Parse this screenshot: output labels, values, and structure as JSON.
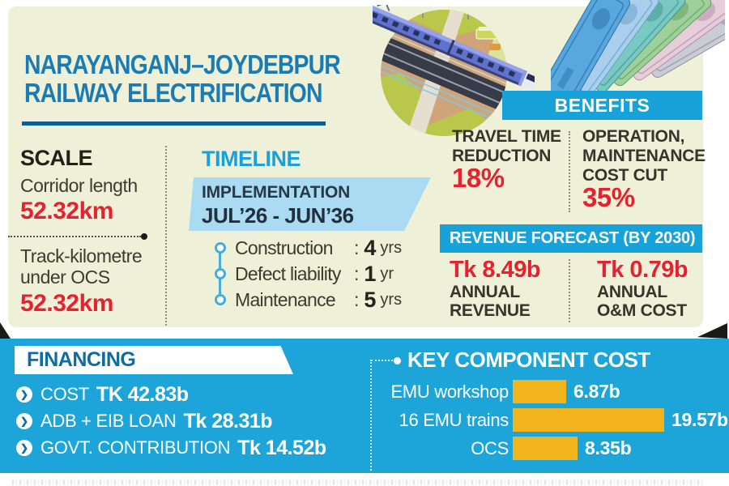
{
  "header": {
    "title_line1": "NARAYANGANJ–JOYDEBPUR",
    "title_line2": "RAILWAY ELECTRIFICATION"
  },
  "scale": {
    "heading": "SCALE",
    "corridor_label": "Corridor length",
    "corridor_value": "52.32km",
    "track_label_line1": "Track-kilometre",
    "track_label_line2": "under OCS",
    "track_value": "52.32km"
  },
  "timeline": {
    "heading": "TIMELINE",
    "implementation_label": "IMPLEMENTATION",
    "implementation_period": "JUL’26 - JUN’36",
    "phases": [
      {
        "label": "Construction",
        "colon": ":",
        "value": "4",
        "unit": "yrs"
      },
      {
        "label": "Defect liability",
        "colon": ":",
        "value": "1",
        "unit": "yr"
      },
      {
        "label": "Maintenance",
        "colon": ":",
        "value": "5",
        "unit": "yrs"
      }
    ]
  },
  "benefits": {
    "heading": "BENEFITS",
    "items": [
      {
        "lines": [
          "TRAVEL TIME",
          "REDUCTION"
        ],
        "value": "18%"
      },
      {
        "lines": [
          "OPERATION,",
          "MAINTENANCE",
          "COST CUT"
        ],
        "value": "35%"
      }
    ]
  },
  "revenue_forecast": {
    "heading": "REVENUE FORECAST (BY 2030)",
    "items": [
      {
        "value": "Tk 8.49b",
        "lines": [
          "ANNUAL",
          "REVENUE"
        ]
      },
      {
        "value": "Tk 0.79b",
        "lines": [
          "ANNUAL",
          "O&M COST"
        ]
      }
    ]
  },
  "financing": {
    "heading": "FINANCING",
    "bullet_glyph": "❯",
    "items": [
      {
        "label": "COST",
        "value": "TK 42.83b"
      },
      {
        "label": "ADB + EIB LOAN",
        "value": "Tk 28.31b"
      },
      {
        "label": "GOVT. CONTRIBUTION",
        "value": "Tk 14.52b"
      }
    ]
  },
  "chart_data": {
    "type": "bar",
    "orientation": "horizontal",
    "title": "KEY COMPONENT COST",
    "categories": [
      "EMU workshop",
      "16 EMU trains",
      "OCS"
    ],
    "values": [
      6.87,
      19.57,
      8.35
    ],
    "value_labels": [
      "6.87b",
      "19.57b",
      "8.35b"
    ],
    "unit": "Tk billion",
    "xlim": [
      0,
      21
    ],
    "bar_color": "#f2b41c",
    "grid": false,
    "legend": false
  },
  "colors": {
    "cream_panel": "#eef1d7",
    "band_blue": "#1da5d9",
    "header_bar_blue": "#17a3d9",
    "title_blue": "#1b7cb5",
    "accent_red": "#e62230",
    "dark_text": "#35352c",
    "implementation_box_blue": "#abdaf3",
    "bar_yellow": "#f2b41c",
    "banner_text_blue": "#0d6ca2"
  }
}
